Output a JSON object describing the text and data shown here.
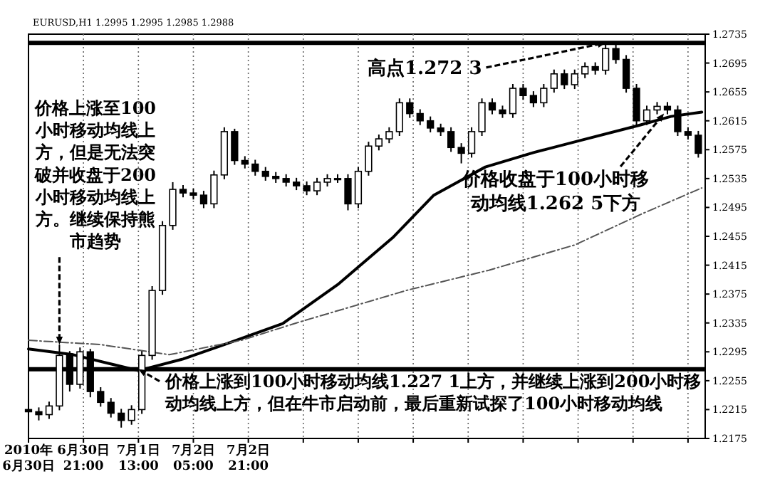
{
  "chart_data": {
    "type": "candlestick",
    "annotations": [
      "EURUSD,H1 1.2995 1.2995 1.2985 1.2988",
      {
        "text": "价格上涨至100小时移动均线上方，但是无法突破并收盘于200小时移动均线上方。继续保持熊市趋势",
        "x": "2010-06-30T14:00",
        "y": 1.2305
      },
      {
        "text": "高点1.272 3",
        "x": "2010-07-07T05:00",
        "y": 1.2723
      },
      {
        "text": "价格收盘于100小时移动均线1.262 5下方",
        "x": "2010-07-07T22:00",
        "y": 1.2625
      },
      {
        "text": "价格上涨到100小时移动均线1.227 1上方，并继续上涨到200小时移动均线上方，但在牛市启动前，最后重新试探了100小时移动均线",
        "x": "2010-07-01T13:00",
        "y": 1.2271
      }
    ],
    "xlim": [
      "2010-06-30T05:00",
      "2010-07-08T10:00"
    ],
    "xticks": [
      {
        "value": "2010-06-30T05:00",
        "label": "2010年 6月30日"
      },
      {
        "value": "2010-06-30T21:00",
        "label": "6月30日 21:00"
      },
      {
        "value": "2010-07-01T13:00",
        "label": "7月1日 13:00"
      },
      {
        "value": "2010-07-02T05:00",
        "label": "7月2日 05:00"
      },
      {
        "value": "2010-07-02T21:00",
        "label": "7月2日 21:00"
      },
      {
        "value": "2010-07-03T13:00",
        "label": null
      },
      {
        "value": "2010-07-04T05:00",
        "label": null
      },
      {
        "value": "2010-07-04T21:00",
        "label": null
      },
      {
        "value": "2010-07-05T13:00",
        "label": null
      },
      {
        "value": "2010-07-06T05:00",
        "label": null
      },
      {
        "value": "2010-07-06T21:00",
        "label": null
      },
      {
        "value": "2010-07-07T13:00",
        "label": null
      },
      {
        "value": "2010-07-08T05:00",
        "label": null
      }
    ],
    "ylim": [
      1.2175,
      1.2735
    ],
    "yticks": [
      1.2175,
      1.2215,
      1.2255,
      1.2295,
      1.2335,
      1.2375,
      1.2415,
      1.2455,
      1.2495,
      1.2535,
      1.2575,
      1.2615,
      1.2655,
      1.2695,
      1.2735
    ],
    "grid": "x",
    "ref_lines": [
      {
        "axis": "y",
        "value": 1.2723,
        "color": "#000000"
      },
      {
        "axis": "y",
        "value": 1.2271,
        "color": "#000000"
      }
    ],
    "series": [
      {
        "type": "candlestick",
        "color": "#000000",
        "x": [
          "2010-06-30T05:00",
          "2010-06-30T08:00",
          "2010-06-30T11:00",
          "2010-06-30T14:00",
          "2010-06-30T17:00",
          "2010-06-30T20:00",
          "2010-06-30T23:00",
          "2010-07-01T02:00",
          "2010-07-01T05:00",
          "2010-07-01T08:00",
          "2010-07-01T11:00",
          "2010-07-01T14:00",
          "2010-07-01T17:00",
          "2010-07-01T20:00",
          "2010-07-01T23:00",
          "2010-07-02T02:00",
          "2010-07-02T05:00",
          "2010-07-02T08:00",
          "2010-07-02T11:00",
          "2010-07-02T14:00",
          "2010-07-02T17:00",
          "2010-07-02T20:00",
          "2010-07-02T23:00",
          "2010-07-03T02:00",
          "2010-07-03T05:00",
          "2010-07-03T08:00",
          "2010-07-03T11:00",
          "2010-07-03T14:00",
          "2010-07-03T17:00",
          "2010-07-03T20:00",
          "2010-07-03T23:00",
          "2010-07-04T02:00",
          "2010-07-04T05:00",
          "2010-07-04T08:00",
          "2010-07-04T11:00",
          "2010-07-04T14:00",
          "2010-07-04T17:00",
          "2010-07-04T20:00",
          "2010-07-04T23:00",
          "2010-07-05T02:00",
          "2010-07-05T05:00",
          "2010-07-05T08:00",
          "2010-07-05T11:00",
          "2010-07-05T14:00",
          "2010-07-05T17:00",
          "2010-07-05T20:00",
          "2010-07-05T23:00",
          "2010-07-06T02:00",
          "2010-07-06T05:00",
          "2010-07-06T08:00",
          "2010-07-06T11:00",
          "2010-07-06T14:00",
          "2010-07-06T17:00",
          "2010-07-06T20:00",
          "2010-07-06T23:00",
          "2010-07-07T02:00",
          "2010-07-07T05:00",
          "2010-07-07T08:00",
          "2010-07-07T11:00",
          "2010-07-07T14:00",
          "2010-07-07T17:00",
          "2010-07-07T20:00",
          "2010-07-07T23:00",
          "2010-07-08T02:00",
          "2010-07-08T05:00",
          "2010-07-08T08:00"
        ],
        "ohlc": [
          [
            1.2215,
            1.2221,
            1.2206,
            1.2212
          ],
          [
            1.2212,
            1.2218,
            1.22,
            1.2208
          ],
          [
            1.2208,
            1.2226,
            1.2202,
            1.222
          ],
          [
            1.222,
            1.2305,
            1.2214,
            1.229
          ],
          [
            1.229,
            1.2296,
            1.224,
            1.225
          ],
          [
            1.225,
            1.2301,
            1.2244,
            1.2295
          ],
          [
            1.2295,
            1.2299,
            1.2232,
            1.224
          ],
          [
            1.224,
            1.2246,
            1.2219,
            1.2225
          ],
          [
            1.2225,
            1.2231,
            1.2204,
            1.221
          ],
          [
            1.221,
            1.2216,
            1.219,
            1.22
          ],
          [
            1.22,
            1.2221,
            1.2194,
            1.2215
          ],
          [
            1.2215,
            1.2296,
            1.2209,
            1.229
          ],
          [
            1.229,
            1.2386,
            1.2284,
            1.238
          ],
          [
            1.238,
            1.2476,
            1.2374,
            1.247
          ],
          [
            1.247,
            1.253,
            1.2464,
            1.252
          ],
          [
            1.252,
            1.2526,
            1.2509,
            1.2515
          ],
          [
            1.2515,
            1.2521,
            1.2506,
            1.2512
          ],
          [
            1.2512,
            1.2518,
            1.2494,
            1.25
          ],
          [
            1.25,
            1.2546,
            1.2494,
            1.254
          ],
          [
            1.254,
            1.2606,
            1.2534,
            1.26
          ],
          [
            1.26,
            1.2604,
            1.2554,
            1.256
          ],
          [
            1.256,
            1.2566,
            1.2549,
            1.2555
          ],
          [
            1.2555,
            1.2561,
            1.2539,
            1.2545
          ],
          [
            1.2545,
            1.2551,
            1.2532,
            1.2538
          ],
          [
            1.2538,
            1.2544,
            1.2529,
            1.2535
          ],
          [
            1.2535,
            1.2541,
            1.2524,
            1.253
          ],
          [
            1.253,
            1.2536,
            1.2519,
            1.2525
          ],
          [
            1.2525,
            1.2531,
            1.2512,
            1.2518
          ],
          [
            1.2518,
            1.2536,
            1.2512,
            1.253
          ],
          [
            1.253,
            1.2541,
            1.2524,
            1.2535
          ],
          [
            1.2535,
            1.2541,
            1.2529,
            1.2535
          ],
          [
            1.2535,
            1.2541,
            1.2491,
            1.25
          ],
          [
            1.25,
            1.2551,
            1.2494,
            1.2545
          ],
          [
            1.2545,
            1.2586,
            1.2539,
            1.258
          ],
          [
            1.258,
            1.2596,
            1.2574,
            1.259
          ],
          [
            1.259,
            1.2606,
            1.2584,
            1.26
          ],
          [
            1.26,
            1.2646,
            1.2594,
            1.264
          ],
          [
            1.264,
            1.2646,
            1.2619,
            1.2625
          ],
          [
            1.2625,
            1.2631,
            1.2609,
            1.2615
          ],
          [
            1.2615,
            1.2621,
            1.2599,
            1.2605
          ],
          [
            1.2605,
            1.2611,
            1.2594,
            1.26
          ],
          [
            1.26,
            1.2606,
            1.2572,
            1.2578
          ],
          [
            1.2578,
            1.2584,
            1.2556,
            1.257
          ],
          [
            1.257,
            1.2606,
            1.2564,
            1.26
          ],
          [
            1.26,
            1.2646,
            1.2594,
            1.264
          ],
          [
            1.264,
            1.2646,
            1.2624,
            1.263
          ],
          [
            1.263,
            1.2636,
            1.2619,
            1.2625
          ],
          [
            1.2625,
            1.2666,
            1.2619,
            1.266
          ],
          [
            1.266,
            1.2666,
            1.2644,
            1.265
          ],
          [
            1.265,
            1.2656,
            1.2634,
            1.264
          ],
          [
            1.264,
            1.2666,
            1.2634,
            1.266
          ],
          [
            1.266,
            1.2686,
            1.2654,
            1.268
          ],
          [
            1.268,
            1.2686,
            1.2659,
            1.2665
          ],
          [
            1.2665,
            1.2686,
            1.2659,
            1.268
          ],
          [
            1.268,
            1.2696,
            1.2674,
            1.269
          ],
          [
            1.269,
            1.2696,
            1.2679,
            1.2685
          ],
          [
            1.2685,
            1.2723,
            1.2679,
            1.2715
          ],
          [
            1.2715,
            1.2721,
            1.2694,
            1.27
          ],
          [
            1.27,
            1.2706,
            1.2654,
            1.266
          ],
          [
            1.266,
            1.2666,
            1.2609,
            1.2615
          ],
          [
            1.2615,
            1.2636,
            1.2609,
            1.263
          ],
          [
            1.263,
            1.2641,
            1.2624,
            1.2635
          ],
          [
            1.2635,
            1.2641,
            1.2624,
            1.263
          ],
          [
            1.263,
            1.2636,
            1.2594,
            1.26
          ],
          [
            1.26,
            1.2606,
            1.2589,
            1.2595
          ],
          [
            1.2595,
            1.2601,
            1.2564,
            1.257
          ]
        ]
      },
      {
        "type": "line",
        "color": "#000000",
        "line_style": "solid",
        "x": [
          "2010-06-30T05:00",
          "2010-06-30T18:00",
          "2010-07-01T06:00",
          "2010-07-01T13:00",
          "2010-07-02T02:00",
          "2010-07-02T14:00",
          "2010-07-03T07:00",
          "2010-07-03T23:00",
          "2010-07-04T15:00",
          "2010-07-05T03:00",
          "2010-07-05T18:00",
          "2010-07-06T08:00",
          "2010-07-06T21:00",
          "2010-07-07T15:00",
          "2010-07-08T00:00",
          "2010-07-08T09:00"
        ],
        "values": [
          1.2299,
          1.2291,
          1.2277,
          1.2269,
          1.2285,
          1.2305,
          1.2334,
          1.2388,
          1.2453,
          1.2512,
          1.2551,
          1.2571,
          1.2587,
          1.2609,
          1.2621,
          1.2627
        ]
      },
      {
        "type": "line",
        "color": "#555555",
        "line_style": "dashed",
        "x": [
          "2010-06-30T05:00",
          "2010-07-01T02:00",
          "2010-07-01T22:00",
          "2010-07-02T19:00",
          "2010-07-03T11:00",
          "2010-07-04T19:00",
          "2010-07-05T19:00",
          "2010-07-06T20:00",
          "2010-07-07T16:00",
          "2010-07-08T09:00"
        ],
        "values": [
          1.2311,
          1.2305,
          1.2291,
          1.2311,
          1.2335,
          1.238,
          1.2408,
          1.2443,
          1.2487,
          1.2522
        ]
      }
    ]
  }
}
